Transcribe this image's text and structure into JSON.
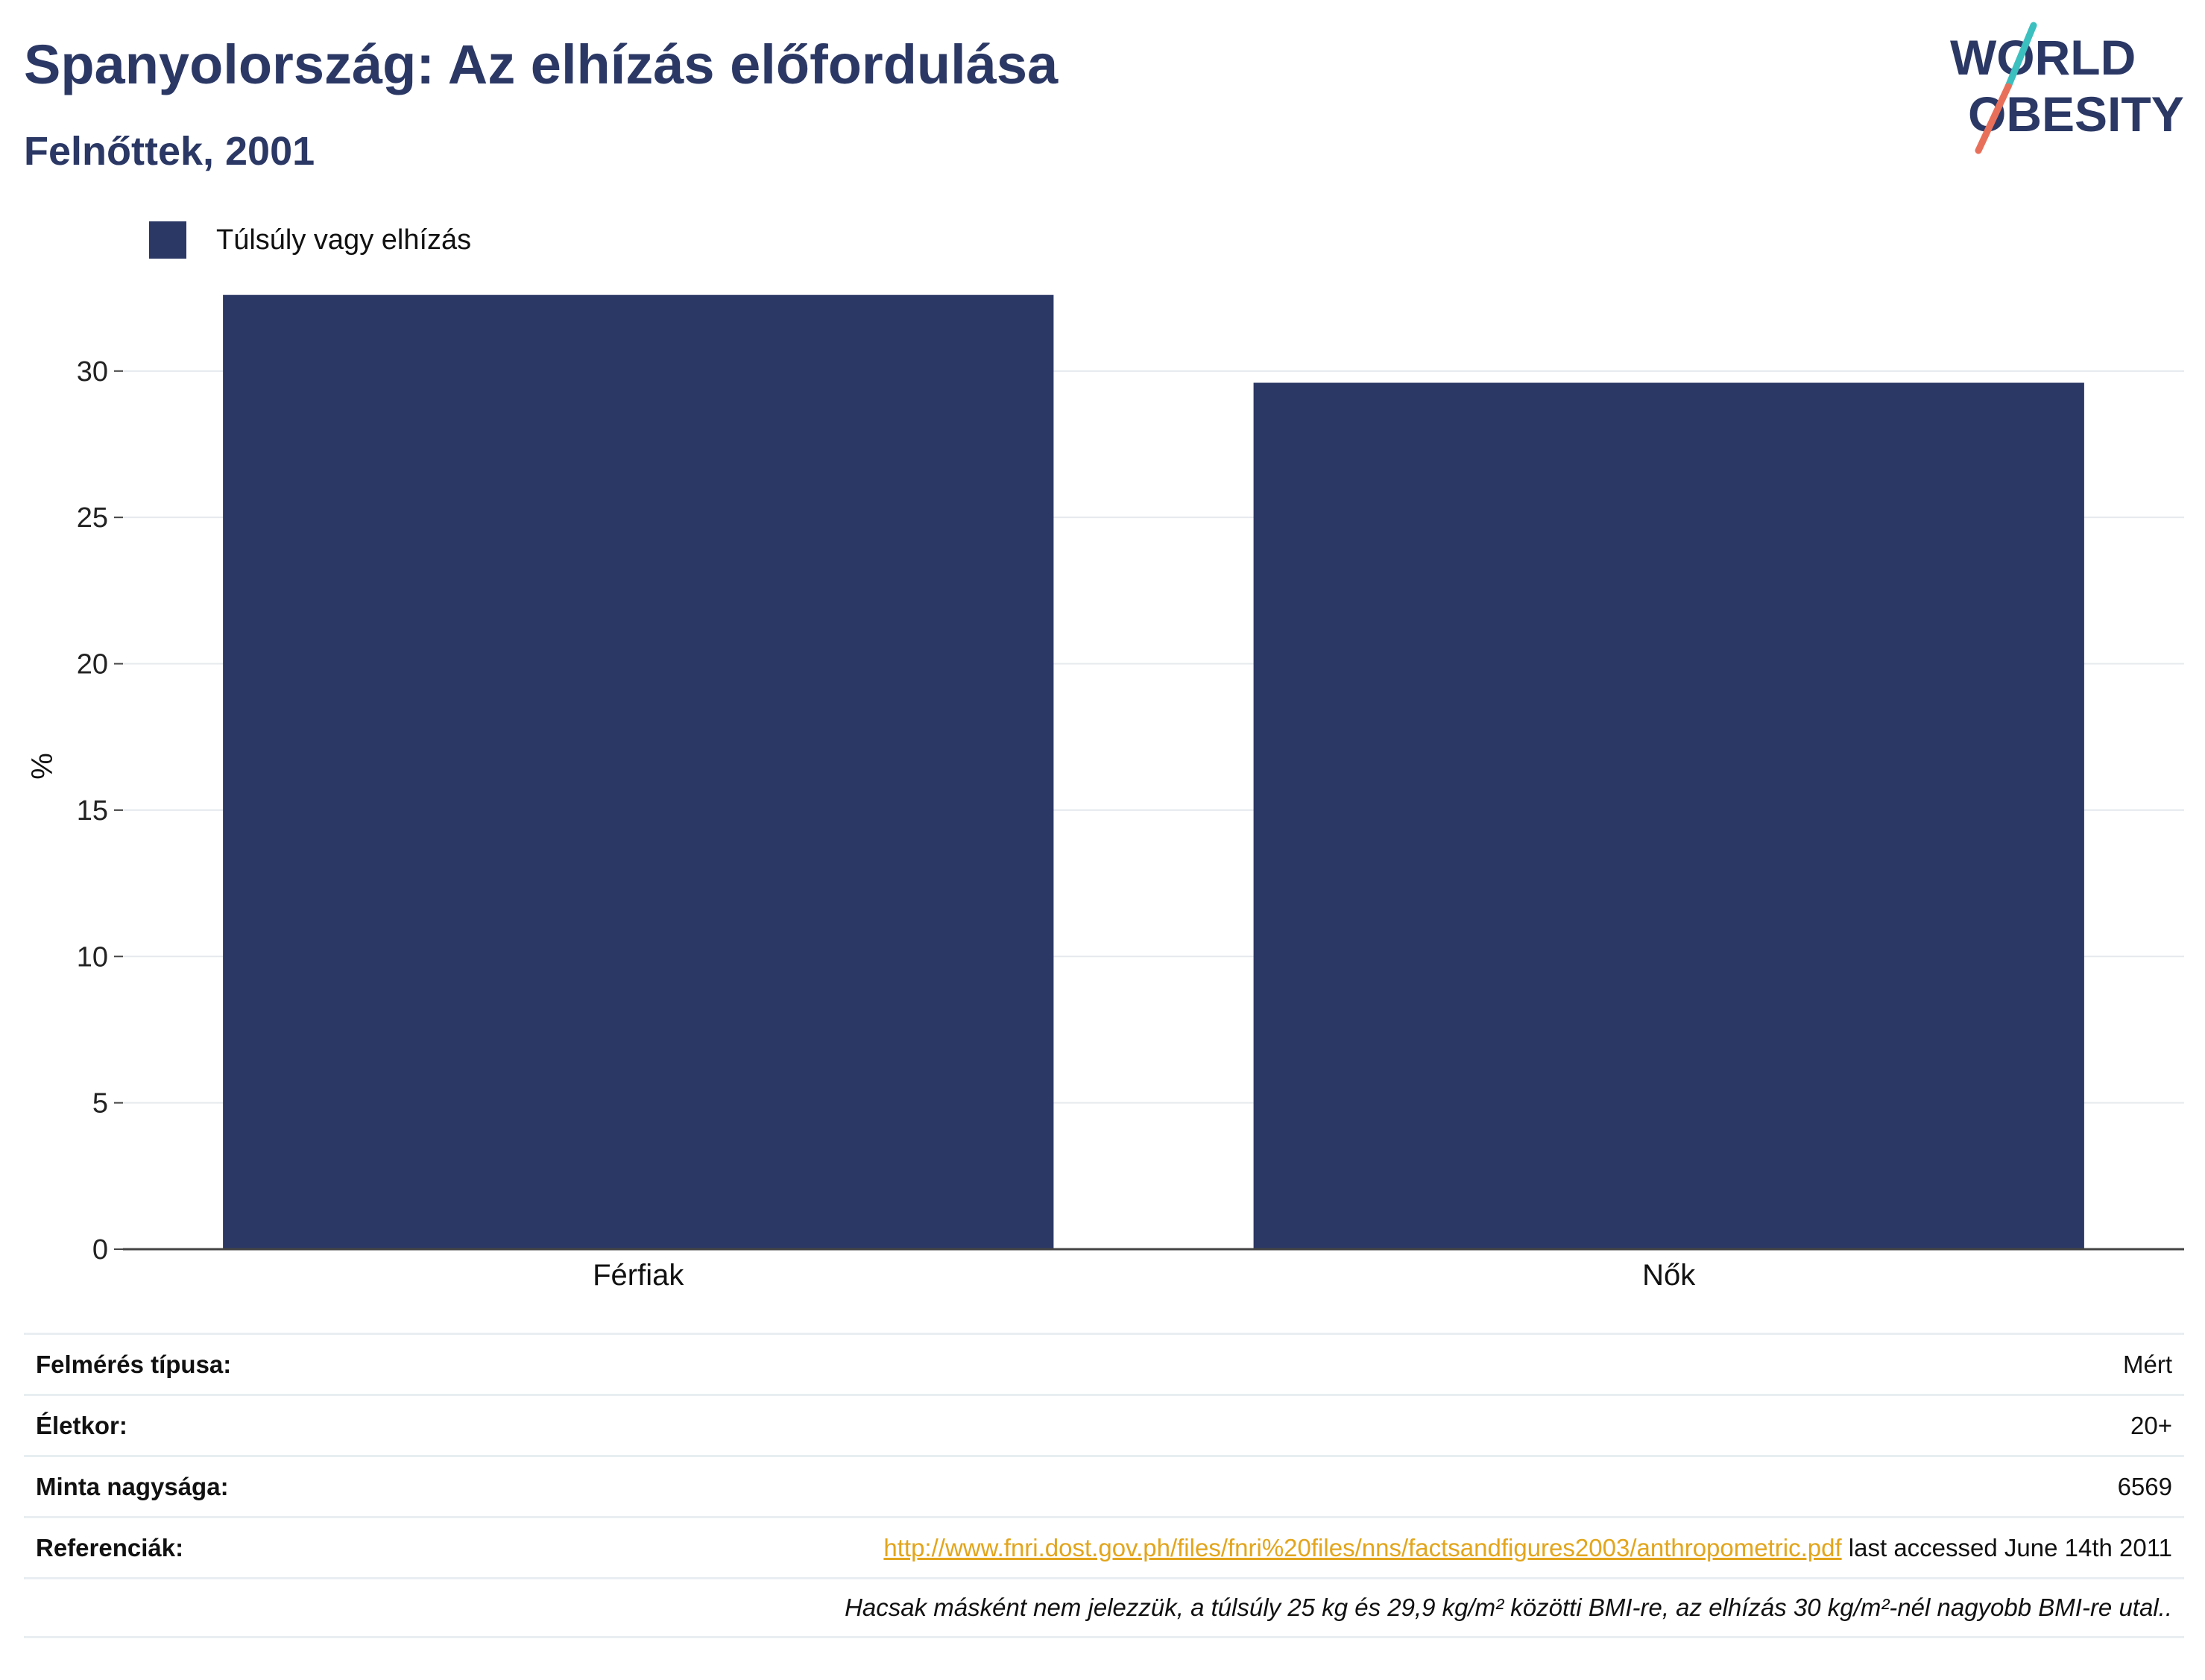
{
  "header": {
    "title": "Spanyolország: Az elhízás előfordulása",
    "subtitle": "Felnőttek, 2001"
  },
  "logo": {
    "line1": "WORLD",
    "line2": "OBESITY",
    "colors": {
      "text": "#2b3865",
      "slash_top": "#3bbfbf",
      "slash_bottom": "#e8705a"
    }
  },
  "legend": {
    "label": "Túlsúly vagy elhízás",
    "color": "#2b3865"
  },
  "chart_data": {
    "type": "bar",
    "categories": [
      "Férfiak",
      "Nők"
    ],
    "series": [
      {
        "name": "Túlsúly vagy elhízás",
        "values": [
          32.6,
          29.6
        ],
        "color": "#2b3865"
      }
    ],
    "ylabel": "%",
    "xlabel": "",
    "ylim": [
      0,
      33
    ],
    "yticks": [
      0,
      5,
      10,
      15,
      20,
      25,
      30
    ],
    "grid": true,
    "legend_position": "top-left"
  },
  "info": {
    "survey_type_label": "Felmérés típusa:",
    "survey_type_value": "Mért",
    "age_label": "Életkor:",
    "age_value": "20+",
    "sample_label": "Minta nagysága:",
    "sample_value": "6569",
    "references_label": "Referenciák:",
    "reference_link": "http://www.fnri.dost.gov.ph/files/fnri%20files/nns/factsandfigures2003/anthropometric.pdf",
    "reference_suffix": " last accessed June 14th 2011",
    "note": "Hacsak másként nem jelezzük, a túlsúly 25 kg és 29,9 kg/m² közötti BMI-re, az elhízás 30 kg/m²-nél nagyobb BMI-re utal.."
  }
}
